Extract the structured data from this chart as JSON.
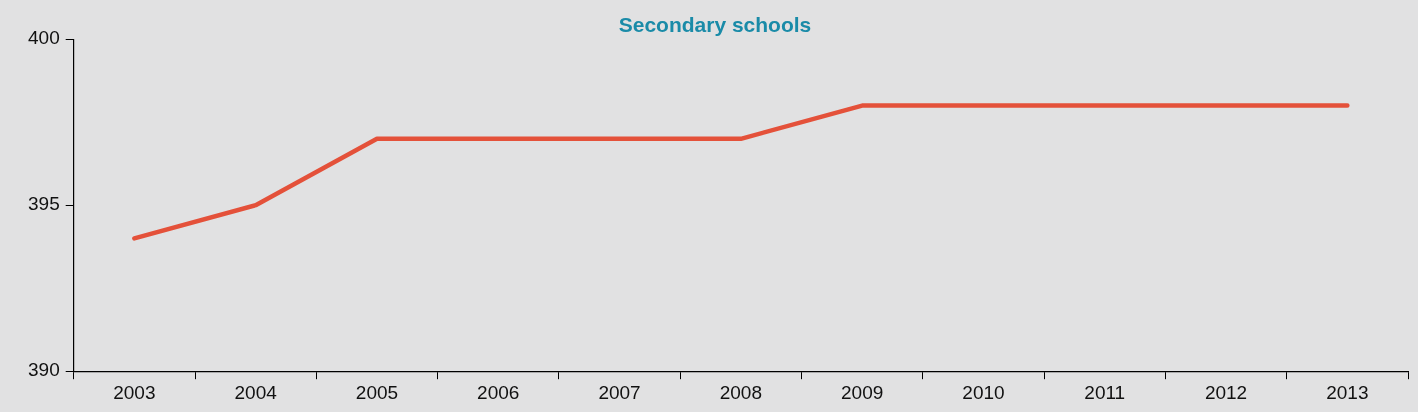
{
  "chart_data": {
    "type": "line",
    "title": "Secondary schools",
    "categories": [
      "2003",
      "2004",
      "2005",
      "2006",
      "2007",
      "2008",
      "2009",
      "2010",
      "2011",
      "2012",
      "2013"
    ],
    "series": [
      {
        "color": "#e4513a",
        "values": [
          394,
          395,
          397,
          397,
          397,
          397,
          398,
          398,
          398,
          398,
          398
        ]
      }
    ],
    "ylim": [
      390,
      400
    ],
    "yticks": [
      390,
      395,
      400
    ],
    "marker": "none"
  }
}
